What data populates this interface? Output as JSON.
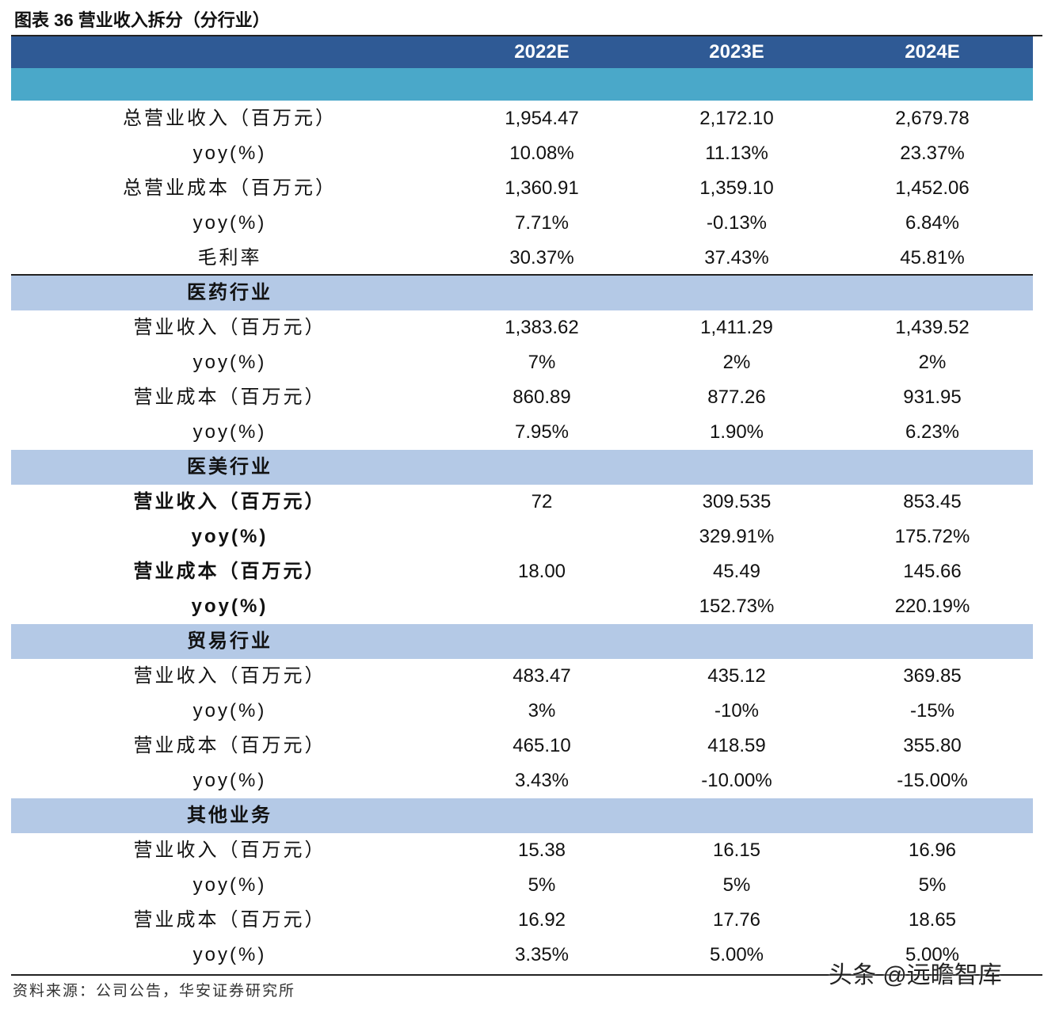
{
  "header": {
    "title": "图表 36 营业收入拆分（分行业）"
  },
  "table": {
    "columns": [
      "2022E",
      "2023E",
      "2024E"
    ],
    "rows": [
      {
        "label": "总营业收入（百万元）",
        "cells": [
          "1,954.47",
          "2,172.10",
          "2,679.78"
        ]
      },
      {
        "label": "yoy(%)",
        "cells": [
          "10.08%",
          "11.13%",
          "23.37%"
        ]
      },
      {
        "label": "总营业成本（百万元）",
        "cells": [
          "1,360.91",
          "1,359.10",
          "1,452.06"
        ]
      },
      {
        "label": "yoy(%)",
        "cells": [
          "7.71%",
          "-0.13%",
          "6.84%"
        ]
      },
      {
        "label": "毛利率",
        "cells": [
          "30.37%",
          "37.43%",
          "45.81%"
        ]
      },
      {
        "section": "医药行业"
      },
      {
        "label": "营业收入（百万元）",
        "cells": [
          "1,383.62",
          "1,411.29",
          "1,439.52"
        ]
      },
      {
        "label": "yoy(%)",
        "cells": [
          "7%",
          "2%",
          "2%"
        ]
      },
      {
        "label": "营业成本（百万元）",
        "cells": [
          "860.89",
          "877.26",
          "931.95"
        ]
      },
      {
        "label": "yoy(%)",
        "cells": [
          "7.95%",
          "1.90%",
          "6.23%"
        ]
      },
      {
        "section": "医美行业"
      },
      {
        "label": "营业收入（百万元）",
        "bold": true,
        "cells": [
          "72",
          "309.535",
          "853.45"
        ]
      },
      {
        "label": "yoy(%)",
        "bold": true,
        "cells": [
          null,
          "329.91%",
          "175.72%"
        ]
      },
      {
        "label": "营业成本（百万元）",
        "bold": true,
        "cells": [
          "18.00",
          "45.49",
          "145.66"
        ]
      },
      {
        "label": "yoy(%)",
        "bold": true,
        "cells": [
          null,
          "152.73%",
          "220.19%"
        ]
      },
      {
        "section": "贸易行业"
      },
      {
        "label": "营业收入（百万元）",
        "cells": [
          "483.47",
          "435.12",
          "369.85"
        ]
      },
      {
        "label": "yoy(%)",
        "cells": [
          "3%",
          "-10%",
          "-15%"
        ]
      },
      {
        "label": "营业成本（百万元）",
        "cells": [
          "465.10",
          "418.59",
          "355.80"
        ]
      },
      {
        "label": "yoy(%)",
        "cells": [
          "3.43%",
          "-10.00%",
          "-15.00%"
        ]
      },
      {
        "section": "其他业务"
      },
      {
        "label": "营业收入（百万元）",
        "cells": [
          "15.38",
          "16.15",
          "16.96"
        ]
      },
      {
        "label": "yoy(%)",
        "cells": [
          "5%",
          "5%",
          "5%"
        ]
      },
      {
        "label": "营业成本（百万元）",
        "cells": [
          "16.92",
          "17.76",
          "18.65"
        ]
      },
      {
        "label": "yoy(%)",
        "cells": [
          "3.35%",
          "5.00%",
          "5.00%"
        ]
      }
    ]
  },
  "footer": {
    "source": "资料来源：公司公告，华安证券研究所",
    "watermark": "头条 @远瞻智库"
  }
}
